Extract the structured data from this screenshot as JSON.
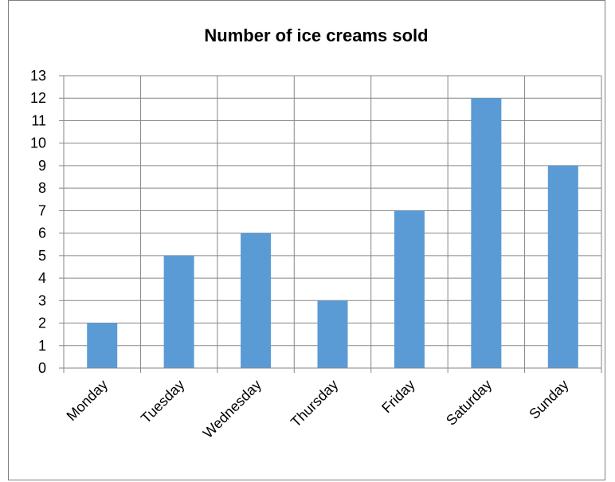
{
  "chart_data": {
    "type": "bar",
    "title": "Number of ice creams sold",
    "xlabel": "",
    "ylabel": "",
    "categories": [
      "Monday",
      "Tuesday",
      "Wednesday",
      "Thursday",
      "Friday",
      "Saturday",
      "Sunday"
    ],
    "values": [
      2,
      5,
      6,
      3,
      7,
      12,
      9
    ],
    "ylim": [
      0,
      13
    ],
    "yticks": [
      0,
      1,
      2,
      3,
      4,
      5,
      6,
      7,
      8,
      9,
      10,
      11,
      12,
      13
    ],
    "grid": true,
    "legend": "none",
    "bar_color": "#5b9bd5",
    "grid_color": "#868686"
  }
}
